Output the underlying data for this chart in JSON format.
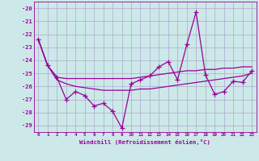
{
  "xlabel": "Windchill (Refroidissement éolien,°C)",
  "x": [
    0,
    1,
    2,
    3,
    4,
    5,
    6,
    7,
    8,
    9,
    10,
    11,
    12,
    13,
    14,
    15,
    16,
    17,
    18,
    19,
    20,
    21,
    22,
    23
  ],
  "line_data": [
    -22.4,
    -24.4,
    -25.3,
    -27.0,
    -26.4,
    -26.7,
    -27.5,
    -27.3,
    -27.9,
    -29.2,
    -25.8,
    -25.5,
    -25.2,
    -24.5,
    -24.1,
    -25.5,
    -22.8,
    -20.3,
    -25.1,
    -26.6,
    -26.4,
    -25.6,
    -25.7,
    -24.8
  ],
  "smooth_upper": [
    -22.4,
    -24.4,
    -25.3,
    -25.4,
    -25.4,
    -25.4,
    -25.4,
    -25.4,
    -25.4,
    -25.4,
    -25.4,
    -25.3,
    -25.2,
    -25.1,
    -25.0,
    -24.9,
    -24.8,
    -24.8,
    -24.7,
    -24.7,
    -24.6,
    -24.6,
    -24.5,
    -24.5
  ],
  "smooth_lower": [
    -22.4,
    -24.4,
    -25.5,
    -25.8,
    -26.0,
    -26.1,
    -26.2,
    -26.3,
    -26.3,
    -26.3,
    -26.3,
    -26.2,
    -26.2,
    -26.1,
    -26.0,
    -25.9,
    -25.8,
    -25.7,
    -25.6,
    -25.5,
    -25.4,
    -25.3,
    -25.2,
    -25.0
  ],
  "line_color": "#990099",
  "bg_color": "#cce8e8",
  "grid_color": "#aaaacc",
  "ylim": [
    -29.5,
    -19.5
  ],
  "yticks": [
    -29,
    -28,
    -27,
    -26,
    -25,
    -24,
    -23,
    -22,
    -21,
    -20
  ],
  "xlim": [
    -0.5,
    23.5
  ]
}
